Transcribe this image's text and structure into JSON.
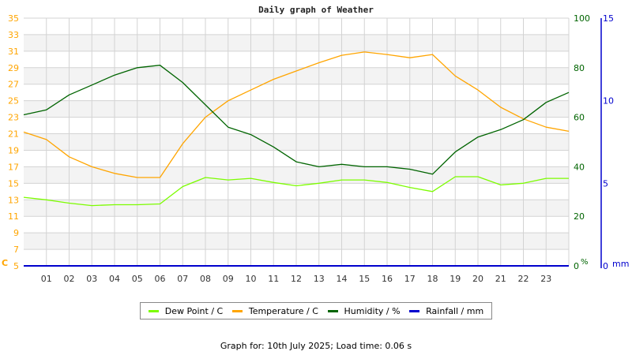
{
  "title": "Daily graph of Weather",
  "footer": "Graph for: 10th July 2025; Load time: 0.06 s",
  "colors": {
    "dew_point": "#7cfc00",
    "temperature": "#ffa500",
    "humidity": "#006400",
    "rainfall": "#0000cd",
    "grid": "#d3d3d3",
    "band": "#f3f3f3"
  },
  "legend": [
    {
      "label": "Dew Point / C",
      "color": "#7cfc00"
    },
    {
      "label": "Temperature / C",
      "color": "#ffa500"
    },
    {
      "label": "Humidity / %",
      "color": "#006400"
    },
    {
      "label": "Rainfall / mm",
      "color": "#0000cd"
    }
  ],
  "axes": {
    "left": {
      "unit": "C",
      "ticks": [
        "35",
        "33",
        "31",
        "29",
        "27",
        "25",
        "23",
        "21",
        "19",
        "17",
        "15",
        "13",
        "11",
        "9",
        "7",
        "5"
      ]
    },
    "right_humidity": {
      "unit": "%",
      "ticks": [
        "100",
        "80",
        "60",
        "40",
        "20",
        "0"
      ]
    },
    "right_rain": {
      "unit": "mm",
      "ticks": [
        "15",
        "10",
        "5",
        "0"
      ]
    },
    "x_ticks": [
      "01",
      "02",
      "03",
      "04",
      "05",
      "06",
      "07",
      "08",
      "09",
      "10",
      "11",
      "12",
      "13",
      "14",
      "15",
      "16",
      "17",
      "18",
      "19",
      "20",
      "21",
      "22",
      "23"
    ]
  },
  "chart_data": {
    "type": "line",
    "title": "Daily graph of Weather",
    "xlabel": "Hour",
    "x": [
      0,
      1,
      2,
      3,
      4,
      5,
      6,
      7,
      8,
      9,
      10,
      11,
      12,
      13,
      14,
      15,
      16,
      17,
      18,
      19,
      20,
      21,
      22,
      23,
      24
    ],
    "x_tick_labels": [
      "01",
      "02",
      "03",
      "04",
      "05",
      "06",
      "07",
      "08",
      "09",
      "10",
      "11",
      "12",
      "13",
      "14",
      "15",
      "16",
      "17",
      "18",
      "19",
      "20",
      "21",
      "22",
      "23"
    ],
    "series": [
      {
        "name": "Dew Point / C",
        "axis": "left",
        "color": "#7cfc00",
        "values": [
          13.3,
          13.0,
          12.6,
          12.3,
          12.4,
          12.4,
          12.5,
          14.6,
          15.7,
          15.4,
          15.6,
          15.1,
          14.7,
          15.0,
          15.4,
          15.4,
          15.1,
          14.5,
          14.0,
          15.8,
          15.8,
          14.8,
          15.0,
          15.6,
          15.6
        ]
      },
      {
        "name": "Temperature / C",
        "axis": "left",
        "color": "#ffa500",
        "values": [
          21.2,
          20.3,
          18.2,
          17.0,
          16.2,
          15.7,
          15.7,
          19.8,
          23.0,
          25.0,
          26.3,
          27.6,
          28.6,
          29.6,
          30.5,
          30.9,
          30.6,
          30.2,
          30.6,
          28.0,
          26.3,
          24.2,
          22.8,
          21.8,
          21.3
        ]
      },
      {
        "name": "Humidity / %",
        "axis": "right_humidity",
        "color": "#006400",
        "values": [
          61,
          63,
          69,
          73,
          77,
          80,
          81,
          74,
          65,
          56,
          53,
          48,
          42,
          40,
          41,
          40,
          40,
          39,
          37,
          46,
          52,
          55,
          59,
          66,
          70
        ]
      },
      {
        "name": "Rainfall / mm",
        "axis": "right_rain",
        "color": "#0000cd",
        "values": [
          0,
          0,
          0,
          0,
          0,
          0,
          0,
          0,
          0,
          0,
          0,
          0,
          0,
          0,
          0,
          0,
          0,
          0,
          0,
          0,
          0,
          0,
          0,
          0,
          0
        ]
      }
    ],
    "axes": {
      "left": {
        "label": "C",
        "range": [
          5,
          35
        ],
        "ticks": [
          5,
          7,
          9,
          11,
          13,
          15,
          17,
          19,
          21,
          23,
          25,
          27,
          29,
          31,
          33,
          35
        ]
      },
      "right_humidity": {
        "label": "%",
        "range": [
          0,
          100
        ],
        "ticks": [
          0,
          20,
          40,
          60,
          80,
          100
        ]
      },
      "right_rain": {
        "label": "mm",
        "range": [
          0,
          15
        ],
        "ticks": [
          0,
          5,
          10,
          15
        ]
      }
    },
    "grid": true,
    "legend_position": "bottom"
  }
}
